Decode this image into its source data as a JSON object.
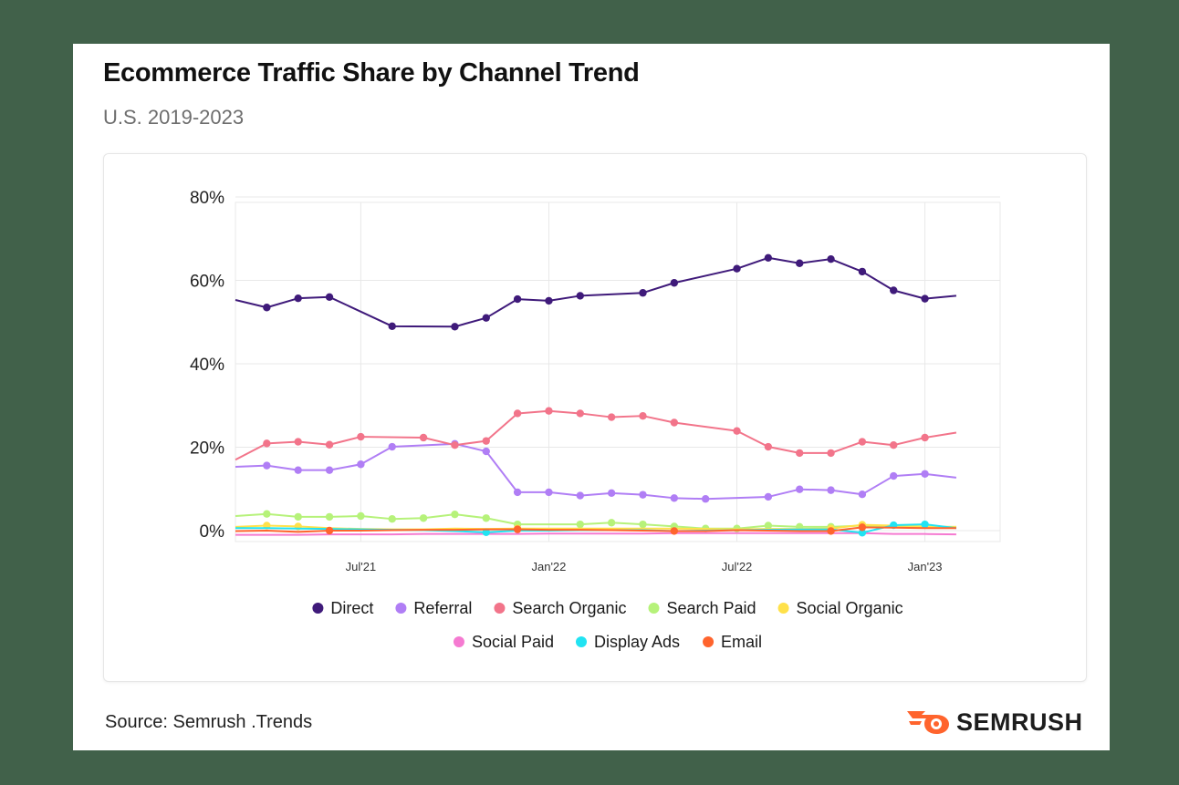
{
  "title": "Ecommerce Traffic Share by Channel Trend",
  "subtitle": "U.S. 2019-2023",
  "source": "Source: Semrush .Trends",
  "brand": {
    "name": "SEMRUSH",
    "icon": "semrush-flame-icon",
    "color": "#ff642d"
  },
  "chart_data": {
    "type": "line",
    "x": [
      "2021-03",
      "2021-04",
      "2021-05",
      "2021-06",
      "2021-07",
      "2021-08",
      "2021-09",
      "2021-10",
      "2021-11",
      "2021-12",
      "2022-01",
      "2022-02",
      "2022-03",
      "2022-04",
      "2022-05",
      "2022-06",
      "2022-07",
      "2022-08",
      "2022-09",
      "2022-10",
      "2022-11",
      "2022-12",
      "2023-01",
      "2023-02",
      "2023-03",
      "2023-04"
    ],
    "x_ticks": [
      {
        "x": "2021-07",
        "label": "Jul'21"
      },
      {
        "x": "2022-01",
        "label": "Jan'22"
      },
      {
        "x": "2022-07",
        "label": "Jul'22"
      },
      {
        "x": "2023-01",
        "label": "Jan'23"
      }
    ],
    "ylim": [
      0,
      80
    ],
    "y_ticks": [
      {
        "value": 0,
        "label": "0%"
      },
      {
        "value": 20,
        "label": "20%"
      },
      {
        "value": 40,
        "label": "40%"
      },
      {
        "value": 60,
        "label": "60%"
      },
      {
        "value": 80,
        "label": "80%"
      }
    ],
    "grid": true,
    "legend_position": "bottom",
    "series": [
      {
        "name": "Direct",
        "color": "#3f1a7a",
        "values": [
          55.3,
          53.5,
          55.7,
          56.0,
          null,
          49.0,
          null,
          48.9,
          51.0,
          55.5,
          55.1,
          56.3,
          null,
          57.0,
          59.4,
          null,
          62.8,
          65.4,
          64.1,
          65.1,
          62.1,
          57.6,
          55.6,
          56.3,
          null,
          null
        ]
      },
      {
        "name": "Referral",
        "color": "#b07ef5",
        "values": [
          15.3,
          15.6,
          14.5,
          14.5,
          15.9,
          20.1,
          null,
          20.8,
          19.0,
          9.2,
          9.2,
          8.4,
          9.0,
          8.6,
          7.8,
          7.6,
          null,
          8.1,
          9.9,
          9.7,
          8.7,
          13.1,
          13.6,
          12.7,
          null,
          null
        ]
      },
      {
        "name": "Search Organic",
        "color": "#f2748a",
        "values": [
          17.0,
          20.9,
          21.3,
          20.6,
          22.5,
          null,
          22.3,
          20.5,
          21.5,
          28.1,
          28.7,
          28.1,
          27.2,
          27.5,
          25.9,
          null,
          23.9,
          20.1,
          18.6,
          18.6,
          21.3,
          20.5,
          22.3,
          23.5,
          null,
          null
        ]
      },
      {
        "name": "Search Paid",
        "color": "#b6f27a",
        "values": [
          3.5,
          4.0,
          3.3,
          3.3,
          3.5,
          2.8,
          3.0,
          3.9,
          3.0,
          1.5,
          1.5,
          1.5,
          1.9,
          1.5,
          1.0,
          0.5,
          0.5,
          1.2,
          0.9,
          0.9,
          1.2,
          1.0,
          0.7,
          0.9,
          null,
          null
        ]
      },
      {
        "name": "Social Organic",
        "color": "#ffe14a",
        "values": [
          0.9,
          1.2,
          1.0,
          0.6,
          0.4,
          0.3,
          0.3,
          0.5,
          0.4,
          0.5,
          0.5,
          0.5,
          0.5,
          0.5,
          0.5,
          0.4,
          0.3,
          0.4,
          0.4,
          0.5,
          1.4,
          1.2,
          1.0,
          0.9,
          null,
          null
        ]
      },
      {
        "name": "Social Paid",
        "color": "#f57ad1",
        "values": [
          -1.0,
          -1.0,
          -1.0,
          -0.9,
          -0.9,
          -0.9,
          -0.8,
          -0.8,
          -0.8,
          -0.8,
          -0.7,
          -0.7,
          -0.7,
          -0.7,
          -0.6,
          -0.6,
          -0.6,
          -0.6,
          -0.6,
          -0.6,
          -0.6,
          -0.8,
          -0.8,
          -0.9,
          null,
          null
        ]
      },
      {
        "name": "Display Ads",
        "color": "#21e3f2",
        "values": [
          0.6,
          0.6,
          0.5,
          0.4,
          0.3,
          0.2,
          0.1,
          -0.1,
          -0.4,
          0.0,
          0.0,
          0.1,
          0.1,
          0.1,
          -0.1,
          0.0,
          0.1,
          0.2,
          0.3,
          0.3,
          -0.5,
          1.3,
          1.5,
          0.6,
          null,
          null
        ]
      },
      {
        "name": "Email",
        "color": "#ff642d",
        "values": [
          -0.1,
          0.0,
          -0.3,
          0.0,
          0.0,
          0.1,
          0.2,
          0.2,
          0.3,
          0.3,
          0.2,
          0.2,
          0.1,
          0.0,
          -0.1,
          -0.1,
          0.1,
          0.0,
          -0.1,
          -0.1,
          0.8,
          0.7,
          0.6,
          0.6,
          null,
          null
        ]
      }
    ],
    "markers": {
      "Direct": [
        "2021-04",
        "2021-05",
        "2021-06",
        "2021-08",
        "2021-10",
        "2021-11",
        "2021-12",
        "2022-01",
        "2022-02",
        "2022-04",
        "2022-05",
        "2022-07",
        "2022-08",
        "2022-09",
        "2022-10",
        "2022-11",
        "2022-12",
        "2023-01"
      ],
      "Referral": [
        "2021-04",
        "2021-05",
        "2021-06",
        "2021-07",
        "2021-08",
        "2021-10",
        "2021-11",
        "2021-12",
        "2022-01",
        "2022-02",
        "2022-03",
        "2022-04",
        "2022-05",
        "2022-06",
        "2022-08",
        "2022-09",
        "2022-10",
        "2022-11",
        "2022-12",
        "2023-01"
      ],
      "Search Organic": [
        "2021-04",
        "2021-05",
        "2021-06",
        "2021-07",
        "2021-09",
        "2021-10",
        "2021-11",
        "2021-12",
        "2022-01",
        "2022-02",
        "2022-03",
        "2022-04",
        "2022-05",
        "2022-07",
        "2022-08",
        "2022-09",
        "2022-10",
        "2022-11",
        "2022-12",
        "2023-01"
      ],
      "Search Paid": [
        "2021-04",
        "2021-05",
        "2021-06",
        "2021-07",
        "2021-08",
        "2021-09",
        "2021-10",
        "2021-11",
        "2021-12",
        "2022-02",
        "2022-03",
        "2022-04",
        "2022-05",
        "2022-06",
        "2022-07",
        "2022-08",
        "2022-09",
        "2022-10"
      ],
      "Social Organic": [
        "2021-04",
        "2021-05",
        "2021-12",
        "2022-10",
        "2022-11"
      ],
      "Display Ads": [
        "2021-11",
        "2022-11",
        "2022-12",
        "2023-01"
      ],
      "Email": [
        "2021-06",
        "2021-12",
        "2022-05",
        "2022-10",
        "2022-11"
      ]
    }
  }
}
